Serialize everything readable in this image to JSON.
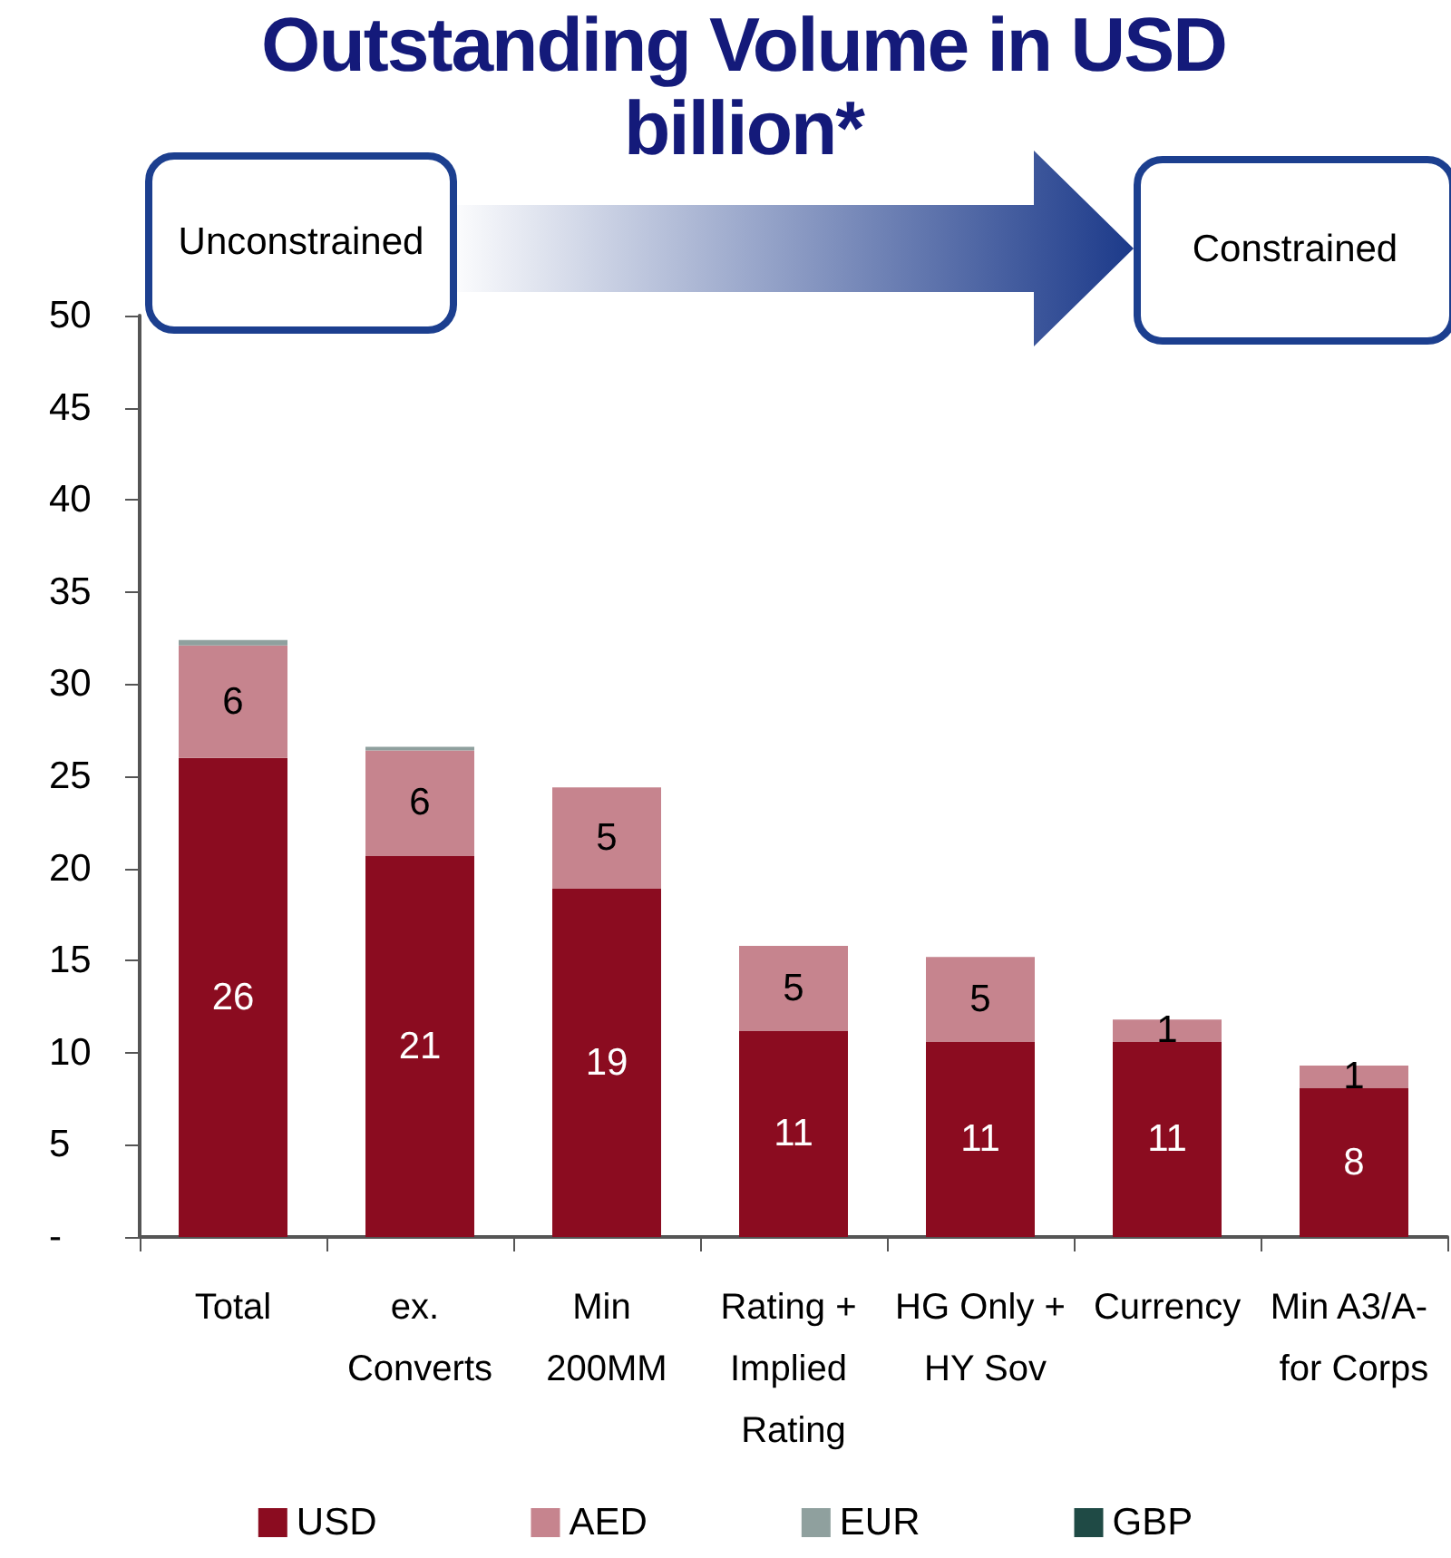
{
  "chart_data": {
    "type": "bar",
    "title": "Outstanding Volume in USD billion*",
    "stacked": true,
    "annotations": [
      "Unconstrained",
      "Constrained"
    ],
    "categories": [
      "Total",
      "ex. Converts",
      "Min 200MM",
      "Rating + Implied Rating",
      "HG Only + HY Sov",
      "Currency",
      "Min A3/A- for Corps"
    ],
    "series": [
      {
        "name": "USD",
        "color": "#8b0c20",
        "values": [
          26.0,
          20.7,
          18.9,
          11.2,
          10.6,
          10.6,
          8.1
        ],
        "value_labels": [
          "26",
          "21",
          "19",
          "11",
          "11",
          "11",
          "8"
        ]
      },
      {
        "name": "AED",
        "color": "#c6848e",
        "values": [
          6.1,
          5.7,
          5.5,
          4.6,
          4.6,
          1.2,
          1.2
        ],
        "value_labels": [
          "6",
          "6",
          "5",
          "5",
          "5",
          "1",
          "1"
        ]
      },
      {
        "name": "EUR",
        "color": "#8fa09e",
        "values": [
          0.3,
          0.2,
          null,
          null,
          null,
          null,
          null
        ]
      },
      {
        "name": "GBP",
        "color": "#1f4a45",
        "values": [
          null,
          null,
          null,
          null,
          null,
          null,
          null
        ]
      }
    ],
    "ylim": [
      0,
      50
    ],
    "yticks": [
      {
        "value": 0,
        "label": "-"
      },
      5,
      10,
      15,
      20,
      25,
      30,
      35,
      40,
      45,
      50
    ],
    "grid": false,
    "legend": "bottom"
  }
}
